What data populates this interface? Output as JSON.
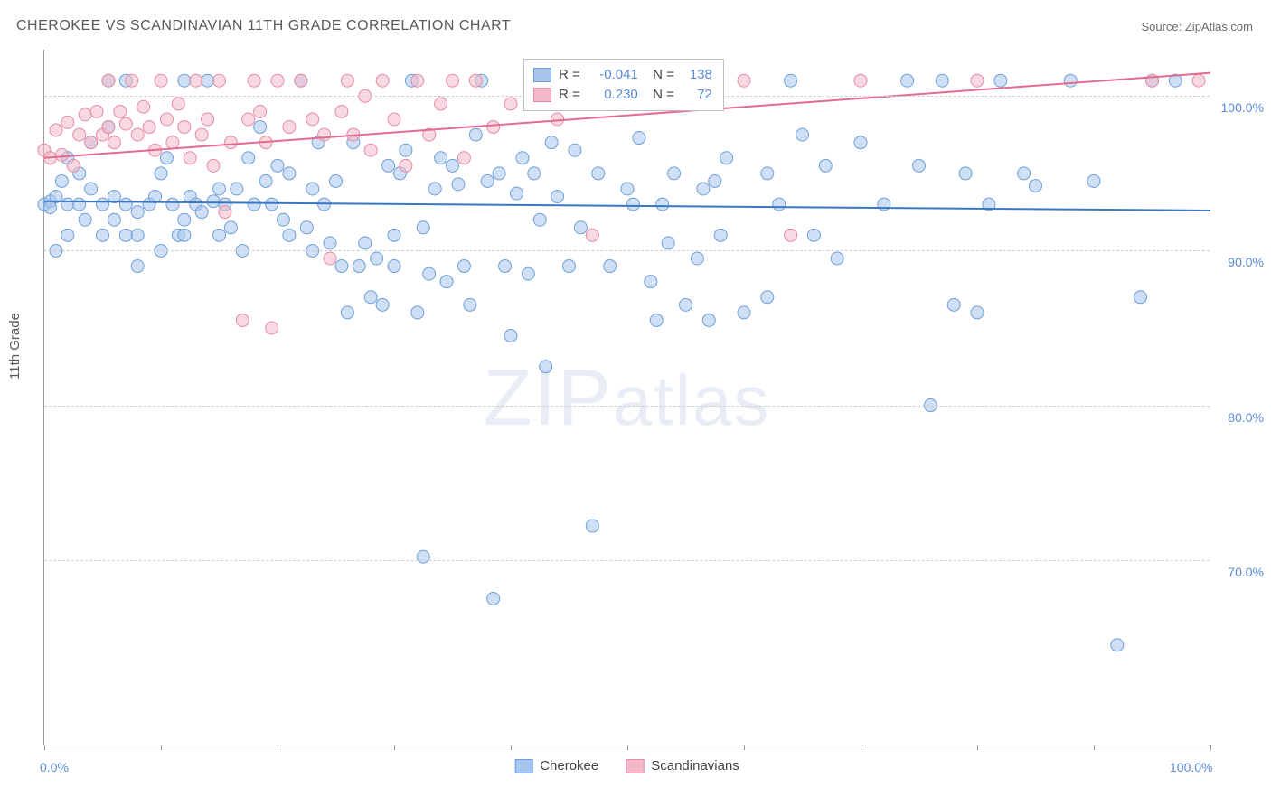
{
  "title": "CHEROKEE VS SCANDINAVIAN 11TH GRADE CORRELATION CHART",
  "source_label": "Source: ",
  "source_name": "ZipAtlas.com",
  "ylabel": "11th Grade",
  "watermark": "ZIPatlas",
  "chart": {
    "type": "scatter",
    "xlim": [
      0,
      100
    ],
    "ylim": [
      58,
      103
    ],
    "xtick_positions": [
      0,
      10,
      20,
      30,
      40,
      50,
      60,
      70,
      80,
      90,
      100
    ],
    "xaxis_labels": [
      {
        "pos": 0,
        "text": "0.0%"
      },
      {
        "pos": 100,
        "text": "100.0%"
      }
    ],
    "ytick_lines": [
      70,
      80,
      90,
      100
    ],
    "ytick_labels": [
      {
        "pos": 70,
        "text": "70.0%"
      },
      {
        "pos": 80,
        "text": "80.0%"
      },
      {
        "pos": 90,
        "text": "90.0%"
      },
      {
        "pos": 100,
        "text": "100.0%"
      }
    ],
    "grid_color": "#cfcfcf",
    "background_color": "#ffffff",
    "marker_radius": 7,
    "marker_opacity": 0.55,
    "line_width": 2,
    "series": [
      {
        "name": "Cherokee",
        "legend_label": "Cherokee",
        "fill_color": "#a7c5ec",
        "stroke_color": "#6f9fd8",
        "line_color": "#3b78c4",
        "regression": {
          "x1": 0,
          "y1": 93.2,
          "x2": 100,
          "y2": 92.6
        },
        "R": "-0.041",
        "N": "138",
        "points": [
          [
            0,
            93
          ],
          [
            0.5,
            93.2
          ],
          [
            0.5,
            92.8
          ],
          [
            1,
            93.5
          ],
          [
            1,
            90
          ],
          [
            1.5,
            94.5
          ],
          [
            2,
            93
          ],
          [
            2,
            96
          ],
          [
            2,
            91
          ],
          [
            3,
            93
          ],
          [
            3,
            95
          ],
          [
            3.5,
            92
          ],
          [
            4,
            94
          ],
          [
            4,
            97
          ],
          [
            5,
            91
          ],
          [
            5,
            93
          ],
          [
            5.5,
            101
          ],
          [
            5.5,
            98
          ],
          [
            6,
            92
          ],
          [
            6,
            93.5
          ],
          [
            7,
            91
          ],
          [
            7,
            93
          ],
          [
            7,
            101
          ],
          [
            8,
            91
          ],
          [
            8,
            92.5
          ],
          [
            8,
            89
          ],
          [
            9,
            93
          ],
          [
            9.5,
            93.5
          ],
          [
            10,
            95
          ],
          [
            10,
            90
          ],
          [
            10.5,
            96
          ],
          [
            11,
            93
          ],
          [
            11.5,
            91
          ],
          [
            12,
            92
          ],
          [
            12,
            91
          ],
          [
            12,
            101
          ],
          [
            12.5,
            93.5
          ],
          [
            13,
            93
          ],
          [
            13.5,
            92.5
          ],
          [
            14,
            101
          ],
          [
            14.5,
            93.2
          ],
          [
            15,
            94
          ],
          [
            15,
            91
          ],
          [
            15.5,
            93
          ],
          [
            16,
            91.5
          ],
          [
            16.5,
            94
          ],
          [
            17,
            90
          ],
          [
            17.5,
            96
          ],
          [
            18,
            93
          ],
          [
            18.5,
            98
          ],
          [
            19,
            94.5
          ],
          [
            19.5,
            93
          ],
          [
            20,
            95.5
          ],
          [
            20.5,
            92
          ],
          [
            21,
            91
          ],
          [
            21,
            95
          ],
          [
            22,
            101
          ],
          [
            22.5,
            91.5
          ],
          [
            23,
            94
          ],
          [
            23,
            90
          ],
          [
            23.5,
            97
          ],
          [
            24,
            93
          ],
          [
            24.5,
            90.5
          ],
          [
            25,
            94.5
          ],
          [
            25.5,
            89
          ],
          [
            26,
            86
          ],
          [
            26.5,
            97
          ],
          [
            27,
            89
          ],
          [
            27.5,
            90.5
          ],
          [
            28,
            87
          ],
          [
            28.5,
            89.5
          ],
          [
            29,
            86.5
          ],
          [
            29.5,
            95.5
          ],
          [
            30,
            89
          ],
          [
            30,
            91
          ],
          [
            30.5,
            95
          ],
          [
            31,
            96.5
          ],
          [
            31.5,
            101
          ],
          [
            32,
            86
          ],
          [
            32.5,
            70.2
          ],
          [
            32.5,
            91.5
          ],
          [
            33,
            88.5
          ],
          [
            33.5,
            94
          ],
          [
            34,
            96
          ],
          [
            34.5,
            88
          ],
          [
            35,
            95.5
          ],
          [
            35.5,
            94.3
          ],
          [
            36,
            89
          ],
          [
            36.5,
            86.5
          ],
          [
            37,
            97.5
          ],
          [
            37.5,
            101
          ],
          [
            38,
            94.5
          ],
          [
            38.5,
            67.5
          ],
          [
            39,
            95
          ],
          [
            39.5,
            89
          ],
          [
            40,
            84.5
          ],
          [
            40.5,
            93.7
          ],
          [
            41,
            96
          ],
          [
            41.5,
            88.5
          ],
          [
            42,
            95
          ],
          [
            42.5,
            92
          ],
          [
            43,
            82.5
          ],
          [
            43.5,
            97
          ],
          [
            44,
            93.5
          ],
          [
            45,
            89
          ],
          [
            45.5,
            96.5
          ],
          [
            46,
            91.5
          ],
          [
            47,
            72.2
          ],
          [
            47.5,
            95
          ],
          [
            48,
            101
          ],
          [
            48.5,
            89
          ],
          [
            50,
            94
          ],
          [
            50.5,
            93
          ],
          [
            51,
            97.3
          ],
          [
            52,
            88
          ],
          [
            52.5,
            85.5
          ],
          [
            53,
            93
          ],
          [
            53.5,
            90.5
          ],
          [
            54,
            95
          ],
          [
            55,
            86.5
          ],
          [
            56,
            89.5
          ],
          [
            56.5,
            94
          ],
          [
            57,
            85.5
          ],
          [
            57.5,
            94.5
          ],
          [
            58,
            91
          ],
          [
            58.5,
            96
          ],
          [
            60,
            86
          ],
          [
            62,
            87
          ],
          [
            62,
            95
          ],
          [
            63,
            93
          ],
          [
            64,
            101
          ],
          [
            65,
            97.5
          ],
          [
            66,
            91
          ],
          [
            67,
            95.5
          ],
          [
            68,
            89.5
          ],
          [
            70,
            97
          ],
          [
            72,
            93
          ],
          [
            74,
            101
          ],
          [
            75,
            95.5
          ],
          [
            76,
            80
          ],
          [
            77,
            101
          ],
          [
            78,
            86.5
          ],
          [
            79,
            95
          ],
          [
            80,
            86
          ],
          [
            81,
            93
          ],
          [
            82,
            101
          ],
          [
            84,
            95
          ],
          [
            85,
            94.2
          ],
          [
            88,
            101
          ],
          [
            90,
            94.5
          ],
          [
            92,
            64.5
          ],
          [
            94,
            87
          ],
          [
            95,
            101
          ],
          [
            97,
            101
          ]
        ]
      },
      {
        "name": "Scandinavians",
        "legend_label": "Scandinavians",
        "fill_color": "#f4b9c8",
        "stroke_color": "#e58ba3",
        "line_color": "#e26b8e",
        "regression": {
          "x1": 0,
          "y1": 96.0,
          "x2": 100,
          "y2": 101.5
        },
        "R": "0.230",
        "N": "72",
        "points": [
          [
            0,
            96.5
          ],
          [
            0.5,
            96
          ],
          [
            1,
            97.8
          ],
          [
            1.5,
            96.2
          ],
          [
            2,
            98.3
          ],
          [
            2.5,
            95.5
          ],
          [
            3,
            97.5
          ],
          [
            3.5,
            98.8
          ],
          [
            4,
            97
          ],
          [
            4.5,
            99
          ],
          [
            5,
            97.5
          ],
          [
            5.5,
            98
          ],
          [
            5.5,
            101
          ],
          [
            6,
            97
          ],
          [
            6.5,
            99
          ],
          [
            7,
            98.2
          ],
          [
            7.5,
            101
          ],
          [
            8,
            97.5
          ],
          [
            8.5,
            99.3
          ],
          [
            9,
            98
          ],
          [
            9.5,
            96.5
          ],
          [
            10,
            101
          ],
          [
            10.5,
            98.5
          ],
          [
            11,
            97
          ],
          [
            11.5,
            99.5
          ],
          [
            12,
            98
          ],
          [
            12.5,
            96
          ],
          [
            13,
            101
          ],
          [
            13.5,
            97.5
          ],
          [
            14,
            98.5
          ],
          [
            14.5,
            95.5
          ],
          [
            15,
            101
          ],
          [
            15.5,
            92.5
          ],
          [
            16,
            97
          ],
          [
            17,
            85.5
          ],
          [
            17.5,
            98.5
          ],
          [
            18,
            101
          ],
          [
            18.5,
            99
          ],
          [
            19,
            97
          ],
          [
            19.5,
            85
          ],
          [
            20,
            101
          ],
          [
            21,
            98
          ],
          [
            22,
            101
          ],
          [
            23,
            98.5
          ],
          [
            24,
            97.5
          ],
          [
            24.5,
            89.5
          ],
          [
            25.5,
            99
          ],
          [
            26,
            101
          ],
          [
            26.5,
            97.5
          ],
          [
            27.5,
            100
          ],
          [
            28,
            96.5
          ],
          [
            29,
            101
          ],
          [
            30,
            98.5
          ],
          [
            31,
            95.5
          ],
          [
            32,
            101
          ],
          [
            33,
            97.5
          ],
          [
            34,
            99.5
          ],
          [
            35,
            101
          ],
          [
            36,
            96
          ],
          [
            37,
            101
          ],
          [
            38.5,
            98
          ],
          [
            40,
            99.5
          ],
          [
            42,
            101
          ],
          [
            44,
            98.5
          ],
          [
            46,
            101
          ],
          [
            47,
            91
          ],
          [
            52,
            101
          ],
          [
            56,
            100
          ],
          [
            60,
            101
          ],
          [
            64,
            91
          ],
          [
            70,
            101
          ],
          [
            80,
            101
          ],
          [
            95,
            101
          ],
          [
            99,
            101
          ]
        ]
      }
    ]
  },
  "legend": {
    "top_box": {
      "rows": [
        {
          "swatch": 0,
          "r_label": "R =",
          "n_label": "N ="
        },
        {
          "swatch": 1,
          "r_label": "R =",
          "n_label": "N ="
        }
      ]
    },
    "bottom": [
      {
        "swatch": 0
      },
      {
        "swatch": 1
      }
    ]
  }
}
